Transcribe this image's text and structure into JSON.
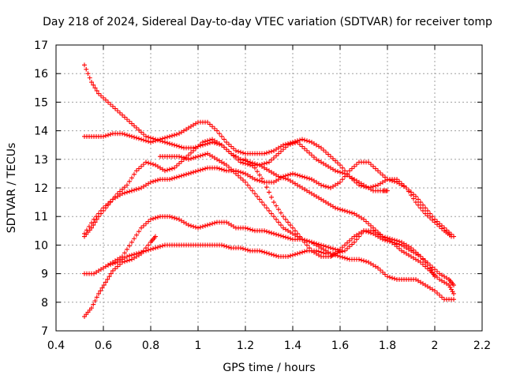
{
  "chart_data": {
    "type": "scatter",
    "title": "Day 218 of 2024, Sidereal Day-to-day VTEC variation (SDTVAR) for receiver tomp",
    "xlabel": "GPS time / hours",
    "ylabel": "SDTVAR / TECUs",
    "xlim": [
      0.4,
      2.2
    ],
    "ylim": [
      7,
      17
    ],
    "xticks": [
      0.4,
      0.6,
      0.8,
      1,
      1.2,
      1.4,
      1.6,
      1.8,
      2,
      2.2
    ],
    "yticks": [
      7,
      8,
      9,
      10,
      11,
      12,
      13,
      14,
      15,
      16,
      17
    ],
    "xtick_labels": [
      "0.4",
      "0.6",
      "0.8",
      "1",
      "1.2",
      "1.4",
      "1.6",
      "1.8",
      "2",
      "2.2"
    ],
    "ytick_labels": [
      "7",
      "8",
      "9",
      "10",
      "11",
      "12",
      "13",
      "14",
      "15",
      "16",
      "17"
    ],
    "grid": true,
    "marker": "+",
    "color": "#ff0000",
    "series": [
      {
        "name": "trace-1",
        "x": [
          0.52,
          0.55,
          0.58,
          0.62,
          0.66,
          0.7,
          0.74,
          0.78,
          0.82,
          0.86,
          0.9,
          0.94,
          0.98,
          1.02,
          1.06,
          1.1,
          1.14,
          1.18,
          1.22,
          1.26,
          1.3,
          1.34,
          1.38,
          1.42,
          1.46,
          1.5,
          1.54,
          1.58,
          1.62,
          1.66,
          1.7,
          1.74,
          1.78,
          1.8
        ],
        "y": [
          16.3,
          15.7,
          15.3,
          15.0,
          14.7,
          14.4,
          14.1,
          13.8,
          13.7,
          13.6,
          13.5,
          13.4,
          13.4,
          13.5,
          13.6,
          13.5,
          13.2,
          12.9,
          12.8,
          12.8,
          12.9,
          13.2,
          13.5,
          13.6,
          13.3,
          13.0,
          12.8,
          12.6,
          12.5,
          12.3,
          12.1,
          11.9,
          11.9,
          11.9
        ]
      },
      {
        "name": "trace-2",
        "x": [
          0.52,
          0.56,
          0.6,
          0.64,
          0.68,
          0.72,
          0.76,
          0.8,
          0.84,
          0.88,
          0.92,
          0.96,
          1.0,
          1.04,
          1.08,
          1.12,
          1.16,
          1.2,
          1.24,
          1.28,
          1.32,
          1.36,
          1.4,
          1.44,
          1.48,
          1.52,
          1.56,
          1.6,
          1.64,
          1.68,
          1.72,
          1.76,
          1.8,
          1.84,
          1.88,
          1.92,
          1.96,
          2.0,
          2.04,
          2.07
        ],
        "y": [
          13.8,
          13.8,
          13.8,
          13.9,
          13.9,
          13.8,
          13.7,
          13.6,
          13.7,
          13.8,
          13.9,
          14.1,
          14.3,
          14.3,
          14.0,
          13.6,
          13.3,
          13.2,
          13.2,
          13.2,
          13.3,
          13.5,
          13.6,
          13.7,
          13.6,
          13.4,
          13.1,
          12.8,
          12.4,
          12.1,
          12.0,
          12.1,
          12.3,
          12.3,
          12.0,
          11.5,
          11.1,
          10.8,
          10.5,
          10.3
        ]
      },
      {
        "name": "trace-3",
        "x": [
          0.52,
          0.55,
          0.58,
          0.62,
          0.66,
          0.7,
          0.74,
          0.78,
          0.82,
          0.86,
          0.9,
          0.94,
          0.98,
          1.02,
          1.06,
          1.1,
          1.14,
          1.18,
          1.22,
          1.26,
          1.3,
          1.34,
          1.38,
          1.42,
          1.46,
          1.5,
          1.54,
          1.58,
          1.62,
          1.66,
          1.7,
          1.74,
          1.78,
          1.82,
          1.86,
          1.9,
          1.94,
          1.98,
          2.02,
          2.06,
          2.08
        ],
        "y": [
          10.3,
          10.6,
          11.0,
          11.4,
          11.8,
          12.1,
          12.6,
          12.9,
          12.8,
          12.6,
          12.7,
          13.0,
          13.3,
          13.6,
          13.7,
          13.5,
          13.2,
          13.0,
          12.9,
          12.8,
          12.6,
          12.4,
          12.3,
          12.1,
          11.9,
          11.7,
          11.5,
          11.3,
          11.2,
          11.1,
          10.9,
          10.6,
          10.3,
          10.2,
          10.1,
          9.9,
          9.6,
          9.3,
          9.0,
          8.8,
          8.6
        ]
      },
      {
        "name": "trace-4",
        "x": [
          0.52,
          0.56,
          0.6,
          0.64,
          0.68,
          0.72,
          0.76,
          0.8,
          0.84,
          0.88,
          0.92,
          0.96,
          1.0,
          1.04,
          1.08,
          1.12,
          1.16,
          1.2,
          1.24,
          1.28,
          1.32,
          1.36,
          1.4,
          1.44,
          1.48,
          1.52,
          1.56,
          1.6,
          1.64,
          1.68,
          1.72,
          1.76,
          1.8,
          1.84,
          1.88,
          1.92,
          1.96,
          2.0,
          2.04,
          2.08
        ],
        "y": [
          10.4,
          10.9,
          11.3,
          11.6,
          11.8,
          11.9,
          12.0,
          12.2,
          12.3,
          12.3,
          12.4,
          12.5,
          12.6,
          12.7,
          12.7,
          12.6,
          12.6,
          12.5,
          12.3,
          12.2,
          12.2,
          12.4,
          12.5,
          12.4,
          12.3,
          12.1,
          12.0,
          12.2,
          12.6,
          12.9,
          12.9,
          12.6,
          12.3,
          12.2,
          12.0,
          11.7,
          11.3,
          10.9,
          10.6,
          10.3
        ]
      },
      {
        "name": "trace-5",
        "x": [
          0.52,
          0.56,
          0.6,
          0.64,
          0.68,
          0.72,
          0.76,
          0.8,
          0.84,
          0.88,
          0.92,
          0.96,
          1.0,
          1.04,
          1.08,
          1.12,
          1.16,
          1.2,
          1.24,
          1.28,
          1.32,
          1.36,
          1.4,
          1.44,
          1.48,
          1.52,
          1.56,
          1.6,
          1.64,
          1.68,
          1.72,
          1.76,
          1.8,
          1.84,
          1.88,
          1.92,
          1.96,
          2.0,
          2.04,
          2.08
        ],
        "y": [
          9.0,
          9.0,
          9.2,
          9.4,
          9.6,
          10.1,
          10.6,
          10.9,
          11.0,
          11.0,
          10.9,
          10.7,
          10.6,
          10.7,
          10.8,
          10.8,
          10.6,
          10.6,
          10.5,
          10.5,
          10.4,
          10.3,
          10.2,
          10.2,
          10.1,
          9.9,
          9.7,
          9.6,
          9.5,
          9.5,
          9.4,
          9.2,
          8.9,
          8.8,
          8.8,
          8.8,
          8.6,
          8.4,
          8.1,
          8.1
        ]
      },
      {
        "name": "trace-6",
        "x": [
          0.52,
          0.55,
          0.58,
          0.61,
          0.64,
          0.68,
          0.72,
          0.76,
          0.8,
          0.82
        ],
        "y": [
          7.5,
          7.8,
          8.3,
          8.7,
          9.1,
          9.4,
          9.5,
          9.7,
          10.1,
          10.3
        ]
      },
      {
        "name": "trace-7",
        "x": [
          0.62,
          0.66,
          0.7,
          0.74,
          0.78,
          0.82,
          0.86,
          0.9,
          0.94,
          0.98,
          1.02,
          1.06,
          1.1,
          1.14,
          1.18,
          1.22,
          1.26,
          1.3,
          1.34,
          1.38,
          1.42,
          1.46,
          1.5,
          1.54,
          1.58,
          1.62,
          1.66,
          1.7,
          1.74,
          1.78,
          1.82,
          1.86,
          1.9,
          1.94,
          1.98,
          2.02,
          2.06,
          2.08
        ],
        "y": [
          9.3,
          9.4,
          9.6,
          9.7,
          9.8,
          9.9,
          10.0,
          10.0,
          10.0,
          10.0,
          10.0,
          10.0,
          10.0,
          9.9,
          9.9,
          9.8,
          9.8,
          9.7,
          9.6,
          9.6,
          9.7,
          9.8,
          9.8,
          9.7,
          9.7,
          9.8,
          10.1,
          10.5,
          10.5,
          10.3,
          10.1,
          9.8,
          9.6,
          9.4,
          9.1,
          8.8,
          8.6,
          8.3
        ]
      },
      {
        "name": "trace-8",
        "x": [
          0.84,
          0.88,
          0.92,
          0.96,
          1.0,
          1.04,
          1.08,
          1.12,
          1.16,
          1.2,
          1.24,
          1.28,
          1.32,
          1.36,
          1.4,
          1.44,
          1.48,
          1.52,
          1.56,
          1.6
        ],
        "y": [
          13.1,
          13.1,
          13.1,
          13.0,
          13.1,
          13.2,
          13.0,
          12.8,
          12.5,
          12.2,
          11.8,
          11.4,
          11.0,
          10.6,
          10.4,
          10.2,
          10.1,
          10.0,
          9.9,
          9.8
        ]
      },
      {
        "name": "trace-9",
        "x": [
          1.2,
          1.24,
          1.28,
          1.32,
          1.36,
          1.4,
          1.44,
          1.48,
          1.52,
          1.56,
          1.58,
          1.62,
          1.66,
          1.7,
          1.74,
          1.78,
          1.82,
          1.86,
          1.9,
          1.94,
          1.98,
          2.0
        ],
        "y": [
          13.0,
          12.7,
          12.2,
          11.5,
          11.0,
          10.6,
          10.2,
          9.8,
          9.6,
          9.6,
          9.7,
          10.0,
          10.3,
          10.5,
          10.4,
          10.2,
          10.1,
          10.0,
          9.8,
          9.6,
          9.2,
          8.9
        ]
      }
    ]
  }
}
